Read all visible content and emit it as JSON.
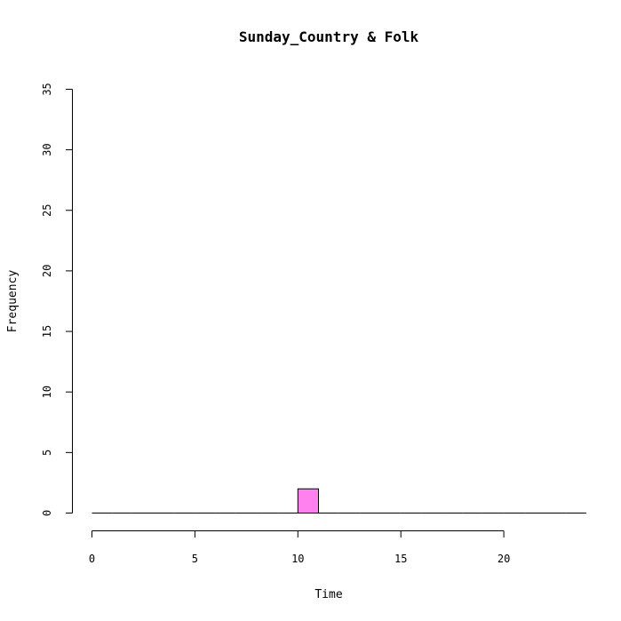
{
  "chart_data": {
    "type": "bar",
    "title": "Sunday_Country & Folk",
    "xlabel": "Time",
    "ylabel": "Frequency",
    "xlim": [
      0,
      24
    ],
    "ylim": [
      0,
      35
    ],
    "x_ticks": [
      0,
      5,
      10,
      15,
      20
    ],
    "y_ticks": [
      0,
      5,
      10,
      15,
      20,
      25,
      30,
      35
    ],
    "bin_width": 1,
    "bins": [
      0,
      1,
      2,
      3,
      4,
      5,
      6,
      7,
      8,
      9,
      10,
      11,
      12,
      13,
      14,
      15,
      16,
      17,
      18,
      19,
      20,
      21,
      22,
      23
    ],
    "values": [
      0,
      0,
      0,
      0,
      0,
      0,
      0,
      0,
      0,
      0,
      2,
      0,
      0,
      0,
      0,
      0,
      0,
      0,
      0,
      0,
      0,
      0,
      0,
      0
    ],
    "bar_color": "#ff80ee",
    "grid": false
  }
}
